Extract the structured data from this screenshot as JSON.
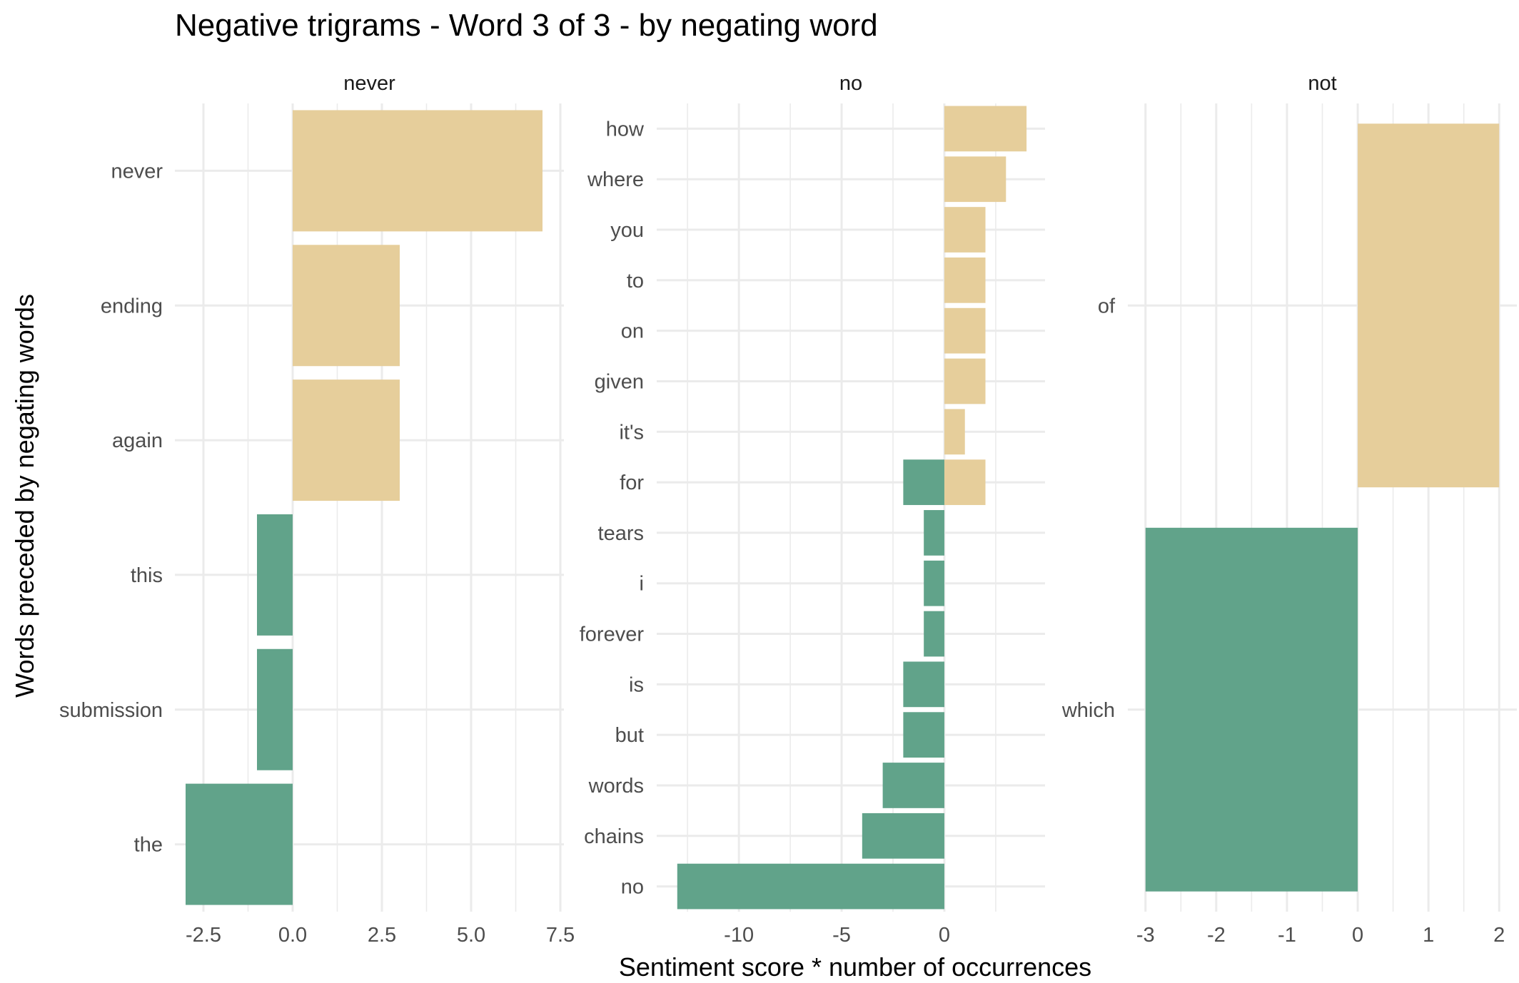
{
  "chart_data": {
    "type": "bar",
    "orientation": "horizontal",
    "title": "Negative trigrams - Word 3 of 3 - by negating word",
    "xlabel": "Sentiment score * number of occurrences",
    "ylabel": "Words preceded by negating words",
    "grid": true,
    "legend": "none",
    "colors": {
      "positive": "#E6CE9B",
      "negative": "#61A38A"
    },
    "facets": [
      {
        "name": "never",
        "xlim": [
          -3.3,
          7.6
        ],
        "xticks": [
          -2.5,
          0,
          2.5,
          5,
          7.5
        ],
        "xtick_labels": [
          "-2.5",
          "0.0",
          "2.5",
          "5.0",
          "7.5"
        ],
        "categories": [
          "never",
          "ending",
          "again",
          "this",
          "submission",
          "the"
        ],
        "bars": [
          {
            "category": "never",
            "value": 7
          },
          {
            "category": "ending",
            "value": 3
          },
          {
            "category": "again",
            "value": 3
          },
          {
            "category": "this",
            "value": -1
          },
          {
            "category": "submission",
            "value": -1
          },
          {
            "category": "the",
            "value": -3
          }
        ]
      },
      {
        "name": "no",
        "xlim": [
          -14,
          4.9
        ],
        "xticks": [
          -10,
          -5,
          0
        ],
        "xtick_labels": [
          "-10",
          "-5",
          "0"
        ],
        "categories": [
          "how",
          "where",
          "you",
          "to",
          "on",
          "given",
          "it's",
          "for",
          "tears",
          "i",
          "forever",
          "is",
          "but",
          "words",
          "chains",
          "no"
        ],
        "bars": [
          {
            "category": "how",
            "value": 4
          },
          {
            "category": "where",
            "value": 3
          },
          {
            "category": "you",
            "value": 2
          },
          {
            "category": "to",
            "value": 2
          },
          {
            "category": "on",
            "value": 2
          },
          {
            "category": "given",
            "value": 2
          },
          {
            "category": "it's",
            "value": 1
          },
          {
            "category": "for",
            "value": 2
          },
          {
            "category": "for",
            "value": -2
          },
          {
            "category": "tears",
            "value": -1
          },
          {
            "category": "i",
            "value": -1
          },
          {
            "category": "forever",
            "value": -1
          },
          {
            "category": "is",
            "value": -2
          },
          {
            "category": "but",
            "value": -2
          },
          {
            "category": "words",
            "value": -3
          },
          {
            "category": "chains",
            "value": -4
          },
          {
            "category": "no",
            "value": -13
          }
        ]
      },
      {
        "name": "not",
        "xlim": [
          -3.25,
          2.25
        ],
        "xticks": [
          -3,
          -2,
          -1,
          0,
          1,
          2
        ],
        "xtick_labels": [
          "-3",
          "-2",
          "-1",
          "0",
          "1",
          "2"
        ],
        "categories": [
          "of",
          "which"
        ],
        "bars": [
          {
            "category": "of",
            "value": 2
          },
          {
            "category": "which",
            "value": -3
          }
        ]
      }
    ]
  }
}
